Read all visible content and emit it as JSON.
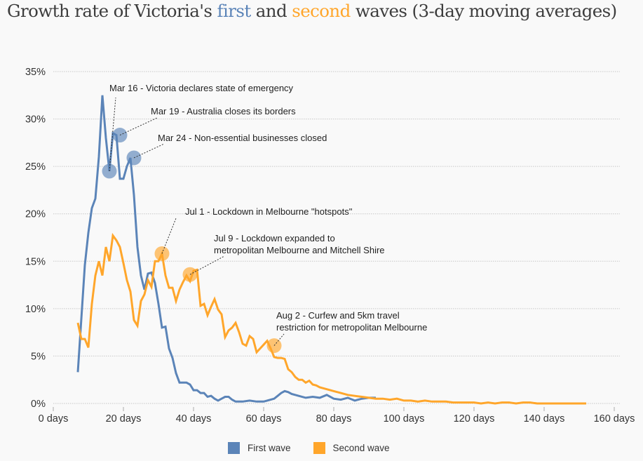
{
  "title": {
    "before": "Growth rate of Victoria's ",
    "first": "first",
    "mid": " and ",
    "second": "second",
    "after": " waves (3-day moving averages)"
  },
  "colors": {
    "first": "#5b84b8",
    "second": "#ffa62b",
    "text": "#3d3d3d"
  },
  "legend": [
    {
      "label": "First wave",
      "color": "#5b84b8"
    },
    {
      "label": "Second wave",
      "color": "#ffa62b"
    }
  ],
  "chart_data": {
    "type": "line",
    "title": "Growth rate of Victoria's first and second waves (3-day moving averages)",
    "xlabel": "",
    "ylabel": "",
    "xlim": [
      0,
      160
    ],
    "ylim": [
      0,
      35
    ],
    "grid": true,
    "legend_position": "bottom",
    "x_ticks": [
      0,
      20,
      40,
      60,
      80,
      100,
      120,
      140,
      160
    ],
    "x_tick_labels": [
      "0 days",
      "20 days",
      "40 days",
      "60 days",
      "80 days",
      "100 days",
      "120 days",
      "140 days",
      "160 days"
    ],
    "y_ticks": [
      0,
      5,
      10,
      15,
      20,
      25,
      30,
      35
    ],
    "y_tick_labels": [
      "0%",
      "5%",
      "10%",
      "15%",
      "20%",
      "25%",
      "30%",
      "35%"
    ],
    "series": [
      {
        "name": "First wave",
        "color": "#5b84b8",
        "x": [
          7,
          9,
          10,
          11,
          12,
          13,
          14,
          15,
          16,
          17,
          18,
          19,
          20,
          21,
          22,
          23,
          24,
          25,
          26,
          27,
          28,
          29,
          30,
          31,
          32,
          33,
          34,
          35,
          36,
          37,
          38,
          39,
          40,
          41,
          42,
          43,
          44,
          45,
          46,
          47,
          48,
          49,
          50,
          51,
          52,
          54,
          56,
          58,
          60,
          62,
          63,
          64,
          65,
          66,
          67,
          68,
          69,
          70,
          72,
          74,
          76,
          78,
          80,
          82,
          84,
          86,
          88,
          90,
          92
        ],
        "values": [
          3.3,
          14.6,
          18,
          20.6,
          21.6,
          26,
          32.5,
          28,
          24.5,
          28.5,
          28.3,
          23.7,
          23.7,
          25,
          25.9,
          22,
          16.5,
          13.5,
          12,
          13.7,
          13.8,
          12.7,
          10.5,
          8,
          8.1,
          5.8,
          4.8,
          3.2,
          2.2,
          2.2,
          2.2,
          2.0,
          1.4,
          1.4,
          1.1,
          1.1,
          0.7,
          0.8,
          0.5,
          0.3,
          0.5,
          0.7,
          0.7,
          0.4,
          0.2,
          0.2,
          0.3,
          0.2,
          0.2,
          0.4,
          0.5,
          0.8,
          1.1,
          1.3,
          1.2,
          1.0,
          0.9,
          0.8,
          0.6,
          0.7,
          0.6,
          0.9,
          0.5,
          0.4,
          0.6,
          0.3,
          0.5,
          0.6,
          0.6
        ]
      },
      {
        "name": "Second wave",
        "color": "#ffa62b",
        "x": [
          7,
          8,
          9,
          10,
          11,
          12,
          13,
          14,
          15,
          16,
          17,
          18,
          19,
          20,
          21,
          22,
          23,
          24,
          25,
          26,
          27,
          28,
          29,
          30,
          31,
          32,
          33,
          34,
          35,
          36,
          37,
          38,
          39,
          40,
          41,
          42,
          43,
          44,
          45,
          46,
          47,
          48,
          49,
          50,
          51,
          52,
          53,
          54,
          55,
          56,
          57,
          58,
          59,
          60,
          61,
          62,
          63,
          64,
          65,
          66,
          67,
          68,
          69,
          70,
          71,
          72,
          73,
          74,
          75,
          76,
          78,
          80,
          82,
          84,
          86,
          88,
          90,
          92,
          94,
          96,
          98,
          100,
          102,
          104,
          106,
          108,
          110,
          112,
          114,
          116,
          120,
          122,
          124,
          126,
          128,
          130,
          132,
          134,
          136,
          138,
          140,
          145,
          152
        ],
        "values": [
          8.5,
          6.8,
          6.8,
          5.9,
          10.5,
          13.5,
          15,
          13.5,
          16.5,
          15,
          17.7,
          17.2,
          16.5,
          14.8,
          13,
          11.8,
          8.8,
          8.2,
          10.8,
          11.5,
          13,
          12.3,
          15,
          15,
          15.8,
          13.5,
          12.2,
          12.2,
          10.8,
          12,
          12.8,
          13.5,
          12.9,
          14,
          14.1,
          10.3,
          10.5,
          9.3,
          10.2,
          11,
          9.9,
          9.4,
          7,
          7.7,
          8,
          8.5,
          7.5,
          6.3,
          6.1,
          7.1,
          6.8,
          5.4,
          5.8,
          6.2,
          6.6,
          5.8,
          4.9,
          4.8,
          4.8,
          4.7,
          3.6,
          3.3,
          2.8,
          2.5,
          2.5,
          2.2,
          2.4,
          2.0,
          1.9,
          1.7,
          1.5,
          1.3,
          1.1,
          0.9,
          0.8,
          0.7,
          0.6,
          0.5,
          0.5,
          0.4,
          0.5,
          0.3,
          0.3,
          0.2,
          0.3,
          0.2,
          0.2,
          0.2,
          0.1,
          0.1,
          0.1,
          0.0,
          0.1,
          0.0,
          0.1,
          0.1,
          0.0,
          0.1,
          0.1,
          0.0,
          0.0,
          0.0,
          0.0
        ]
      }
    ],
    "annotations": [
      {
        "series": "First wave",
        "x": 16,
        "y": 24.5,
        "text": [
          "Mar 16 - Victoria declares state of emergency"
        ]
      },
      {
        "series": "First wave",
        "x": 19,
        "y": 28.3,
        "text": [
          "Mar 19 - Australia closes its borders"
        ]
      },
      {
        "series": "First wave",
        "x": 23,
        "y": 25.9,
        "text": [
          "Mar 24 - Non-essential businesses closed"
        ]
      },
      {
        "series": "Second wave",
        "x": 31,
        "y": 15.8,
        "text": [
          "Jul 1 - Lockdown in Melbourne \"hotspots\""
        ]
      },
      {
        "series": "Second wave",
        "x": 39,
        "y": 13.6,
        "text": [
          "Jul 9 - Lockdown expanded to",
          "metropolitan Melbourne and Mitchell Shire"
        ]
      },
      {
        "series": "Second wave",
        "x": 63,
        "y": 6.1,
        "text": [
          "Aug 2 - Curfew and 5km travel",
          "restriction for metropolitan Melbourne"
        ]
      }
    ]
  }
}
